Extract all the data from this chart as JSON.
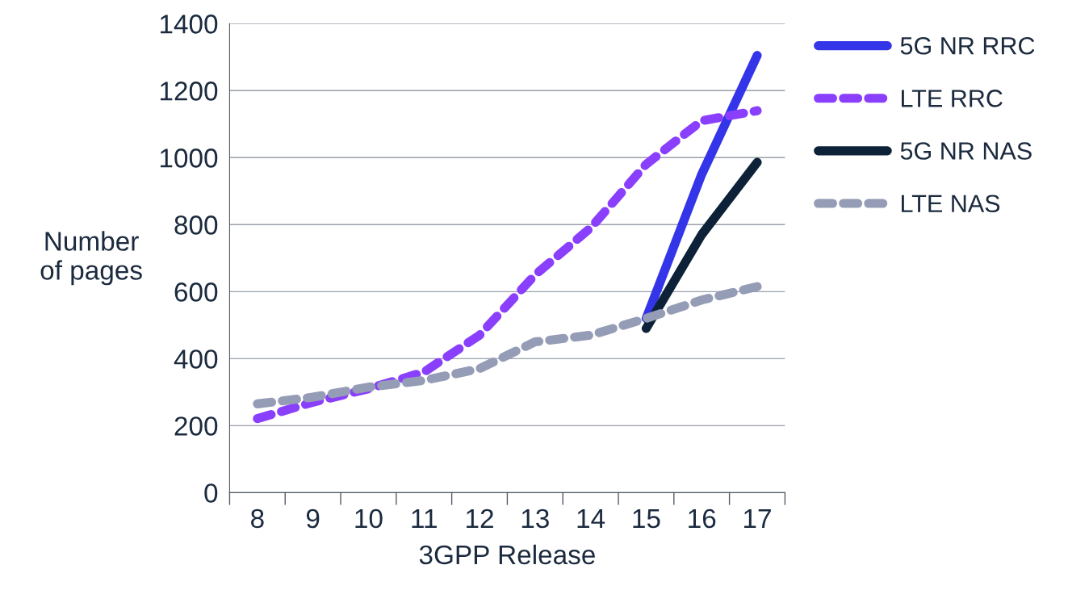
{
  "chart_data": {
    "type": "line",
    "xlabel": "3GPP Release",
    "ylabel": "Number\nof pages",
    "categories": [
      "8",
      "9",
      "10",
      "11",
      "12",
      "13",
      "14",
      "15",
      "16",
      "17"
    ],
    "ylim": [
      0,
      1400
    ],
    "yticks": [
      0,
      200,
      400,
      600,
      800,
      1000,
      1200,
      1400
    ],
    "grid": "y",
    "legend": "right",
    "marker": "none",
    "series": [
      {
        "name": "5G NR RRC",
        "color": "#3434e8",
        "line_style": "solid",
        "values": [
          null,
          null,
          null,
          null,
          null,
          null,
          null,
          520,
          950,
          1305
        ]
      },
      {
        "name": "LTE RRC",
        "color": "#8a3ffc",
        "line_style": "dashed",
        "values": [
          221,
          270,
          310,
          360,
          470,
          650,
          790,
          980,
          1110,
          1140
        ]
      },
      {
        "name": "5G NR NAS",
        "color": "#0d2238",
        "line_style": "solid",
        "values": [
          null,
          null,
          null,
          null,
          null,
          null,
          null,
          490,
          770,
          986
        ]
      },
      {
        "name": "LTE NAS",
        "color": "#959cb5",
        "line_style": "dashed",
        "values": [
          265,
          285,
          315,
          335,
          370,
          450,
          470,
          520,
          575,
          615
        ]
      }
    ]
  }
}
